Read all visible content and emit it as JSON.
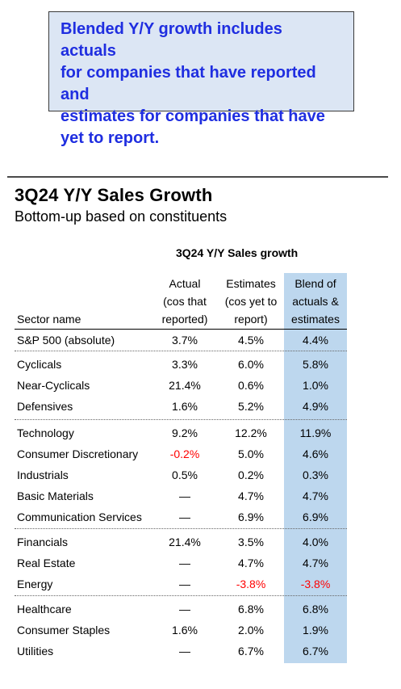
{
  "callout": {
    "lines": [
      "Blended Y/Y growth includes actuals",
      "for companies that have reported and",
      "estimates for companies that have",
      "yet to report."
    ]
  },
  "title": "3Q24 Y/Y Sales Growth",
  "subtitle": "Bottom-up based on constituents",
  "table": {
    "group_title": "3Q24 Y/Y Sales growth",
    "headers": {
      "sector": "Sector name",
      "actual": [
        "Actual",
        "(cos that",
        "reported)"
      ],
      "estimates": [
        "Estimates",
        "(cos yet to",
        "report)"
      ],
      "blend": [
        "Blend of",
        "actuals &",
        "estimates"
      ]
    },
    "rows": [
      {
        "name": "S&P 500 (absolute)",
        "actual": "3.7%",
        "estimates": "4.5%",
        "blend": "4.4%"
      },
      {
        "name": "Cyclicals",
        "actual": "3.3%",
        "estimates": "6.0%",
        "blend": "5.8%"
      },
      {
        "name": "Near-Cyclicals",
        "actual": "21.4%",
        "estimates": "0.6%",
        "blend": "1.0%"
      },
      {
        "name": "Defensives",
        "actual": "1.6%",
        "estimates": "5.2%",
        "blend": "4.9%"
      },
      {
        "name": "Technology",
        "actual": "9.2%",
        "estimates": "12.2%",
        "blend": "11.9%"
      },
      {
        "name": "Consumer Discretionary",
        "actual": "-0.2%",
        "estimates": "5.0%",
        "blend": "4.6%"
      },
      {
        "name": "Industrials",
        "actual": "0.5%",
        "estimates": "0.2%",
        "blend": "0.3%"
      },
      {
        "name": "Basic Materials",
        "actual": "—",
        "estimates": "4.7%",
        "blend": "4.7%"
      },
      {
        "name": "Communication Services",
        "actual": "—",
        "estimates": "6.9%",
        "blend": "6.9%"
      },
      {
        "name": "Financials",
        "actual": "21.4%",
        "estimates": "3.5%",
        "blend": "4.0%"
      },
      {
        "name": "Real Estate",
        "actual": "—",
        "estimates": "4.7%",
        "blend": "4.7%"
      },
      {
        "name": "Energy",
        "actual": "—",
        "estimates": "-3.8%",
        "blend": "-3.8%"
      },
      {
        "name": "Healthcare",
        "actual": "—",
        "estimates": "6.8%",
        "blend": "6.8%"
      },
      {
        "name": "Consumer Staples",
        "actual": "1.6%",
        "estimates": "2.0%",
        "blend": "1.9%"
      },
      {
        "name": "Utilities",
        "actual": "—",
        "estimates": "6.7%",
        "blend": "6.7%"
      }
    ]
  },
  "colors": {
    "callout_text": "#1f2ee0",
    "callout_bg": "#dce6f4",
    "blend_column_bg": "#bdd7ee",
    "negative": "#ff0000"
  }
}
